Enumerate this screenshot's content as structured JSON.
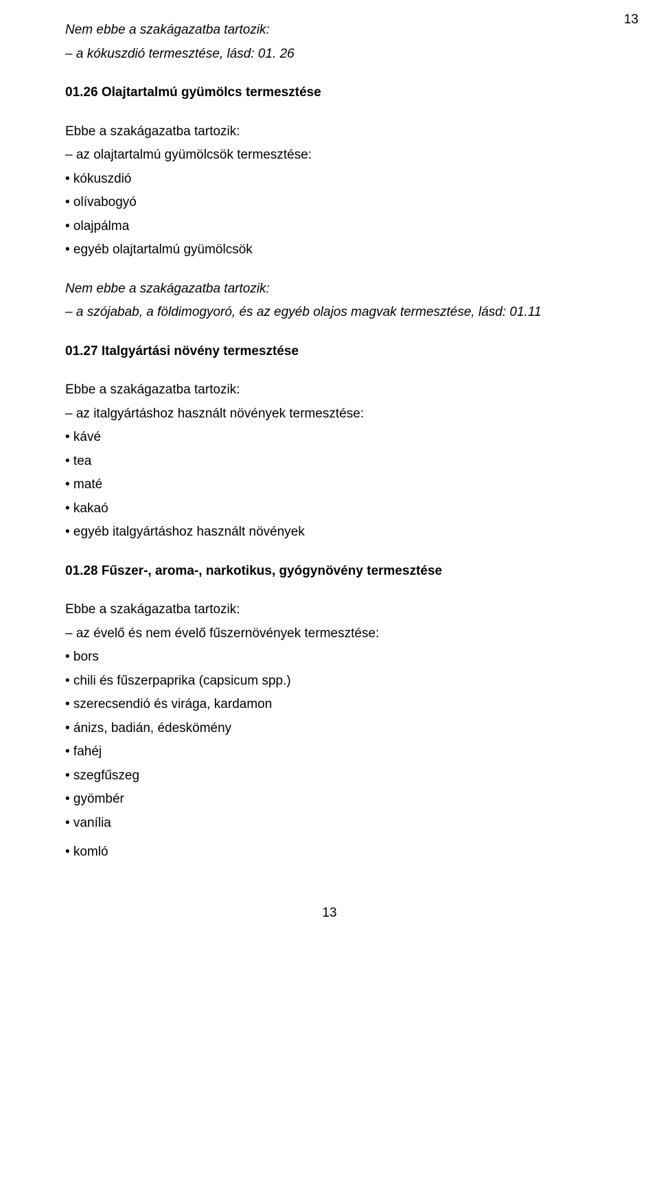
{
  "page": {
    "numberTop": "13",
    "numberBottom": "13"
  },
  "block1": {
    "line1": "Nem ebbe a szakágazatba tartozik:",
    "line2": "– a kókuszdió termesztése, lásd: 01. 26"
  },
  "section26": {
    "title": "01.26 Olajtartalmú gyümölcs termesztése",
    "included": "Ebbe a szakágazatba tartozik:",
    "line1": "– az olajtartalmú gyümölcsök termesztése:",
    "items": [
      "• kókuszdió",
      "• olívabogyó",
      "• olajpálma",
      "• egyéb olajtartalmú gyümölcsök"
    ],
    "excluded": "Nem ebbe a szakágazatba tartozik:",
    "excludedLine": "– a szójabab, a földimogyoró, és az egyéb olajos magvak termesztése, lásd: 01.11"
  },
  "section27": {
    "title": "01.27 Italgyártási növény termesztése",
    "included": "Ebbe a szakágazatba tartozik:",
    "line1": "– az italgyártáshoz használt növények termesztése:",
    "items": [
      "• kávé",
      "• tea",
      "• maté",
      "• kakaó",
      "• egyéb italgyártáshoz használt növények"
    ]
  },
  "section28": {
    "title": "01.28 Fűszer-, aroma-, narkotikus, gyógynövény termesztése",
    "included": "Ebbe a szakágazatba tartozik:",
    "line1": "– az évelő és nem évelő fűszernövények termesztése:",
    "items": [
      "• bors",
      "• chili és fűszerpaprika (capsicum spp.)",
      "• szerecsendió és virága, kardamon",
      "• ánizs, badián, édeskömény",
      "• fahéj",
      "• szegfűszeg",
      "• gyömbér",
      "• vanília",
      "• komló"
    ]
  }
}
